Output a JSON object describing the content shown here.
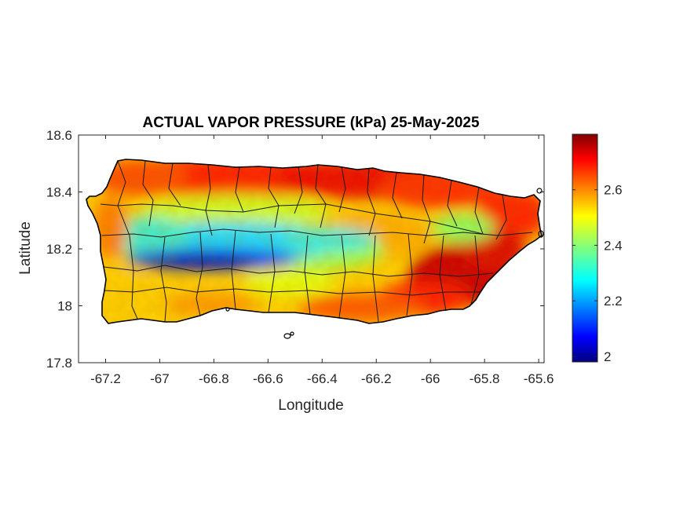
{
  "chart_data": {
    "type": "heatmap",
    "title": "ACTUAL VAPOR PRESSURE (kPa) 25-May-2025",
    "xlabel": "Longitude",
    "ylabel": "Latitude",
    "xlim": [
      -67.3,
      -65.58
    ],
    "ylim": [
      17.8,
      18.6
    ],
    "xticks": [
      "-67.2",
      "-67",
      "-66.8",
      "-66.6",
      "-66.4",
      "-66.2",
      "-66",
      "-65.8",
      "-65.6"
    ],
    "yticks": [
      "18.6",
      "18.4",
      "18.2",
      "18",
      "17.8"
    ],
    "xtick_values": [
      -67.2,
      -67,
      -66.8,
      -66.6,
      -66.4,
      -66.2,
      -66,
      -65.8,
      -65.6
    ],
    "ytick_values": [
      18.6,
      18.4,
      18.2,
      18,
      17.8
    ],
    "colorbar": {
      "colormap": "jet",
      "range": [
        1.98,
        2.8
      ],
      "ticks": [
        "2",
        "2.2",
        "2.4",
        "2.6"
      ],
      "tick_values": [
        2,
        2.2,
        2.4,
        2.6
      ]
    },
    "grid": false,
    "field_description": {
      "minimum_band": {
        "value": 2.02,
        "lon_range": [
          -67.0,
          -66.45
        ],
        "lat": 18.17
      },
      "north_coast_high": 2.72,
      "southeast_high": 2.78,
      "west_coast": 2.55,
      "south_coast": 2.55
    },
    "colors": {
      "coast_outline": "#000000",
      "municipal_boundaries": "#000000",
      "axes": "#262626"
    }
  }
}
